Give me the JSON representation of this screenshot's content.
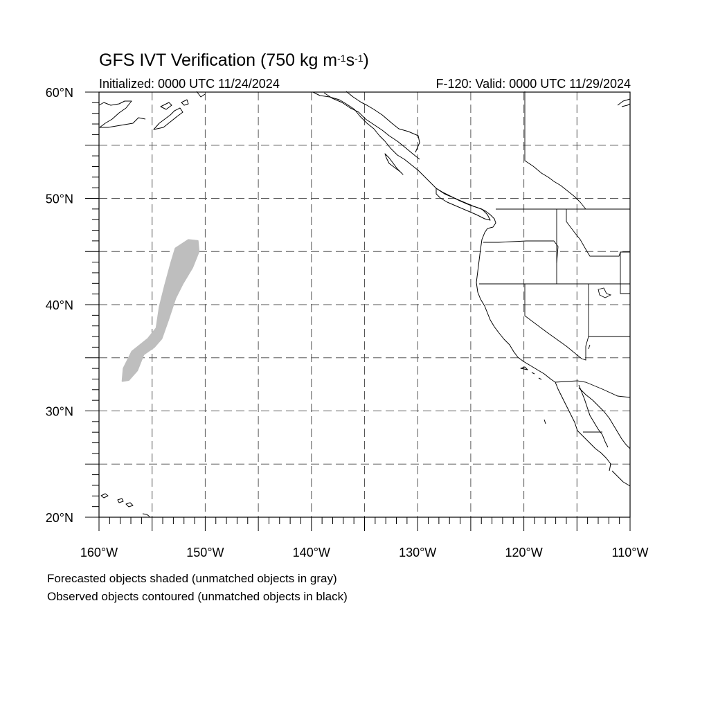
{
  "header": {
    "title_main": "GFS IVT Verification (750 kg m",
    "title_exp1": "-1",
    "title_mid": "s",
    "title_exp2": "-1",
    "title_end": ")",
    "initialized": "Initialized: 0000 UTC 11/24/2024",
    "valid": "F-120: Valid: 0000 UTC 11/29/2024"
  },
  "map": {
    "projection": "cylindrical-equidistant",
    "lon_range": [
      -160,
      -110
    ],
    "lat_range": [
      20,
      60
    ],
    "gridlines": "dashed",
    "lon_labels": [
      "160°W",
      "150°W",
      "140°W",
      "130°W",
      "120°W",
      "110°W"
    ],
    "lat_labels": [
      "60°N",
      "50°N",
      "40°N",
      "30°N",
      "20°N"
    ],
    "forecast_object_color": "#bebebe",
    "forecast_object": {
      "status": "unmatched",
      "outline_lonlat": [
        [
          -152.8,
          45.3
        ],
        [
          -151.6,
          46.1
        ],
        [
          -150.7,
          46.0
        ],
        [
          -150.6,
          45.0
        ],
        [
          -151.2,
          43.5
        ],
        [
          -152.1,
          42.0
        ],
        [
          -152.8,
          40.6
        ],
        [
          -153.5,
          38.5
        ],
        [
          -154.1,
          36.8
        ],
        [
          -154.8,
          36.0
        ],
        [
          -155.8,
          35.3
        ],
        [
          -156.4,
          33.8
        ],
        [
          -157.2,
          32.9
        ],
        [
          -157.8,
          32.8
        ],
        [
          -157.7,
          34.0
        ],
        [
          -156.9,
          35.6
        ],
        [
          -155.4,
          36.8
        ],
        [
          -154.6,
          37.8
        ],
        [
          -154.3,
          39.8
        ],
        [
          -153.8,
          41.8
        ],
        [
          -153.2,
          44.0
        ]
      ]
    }
  },
  "legend": {
    "line1": "Forecasted objects shaded (unmatched objects in gray)",
    "line2": "Observed objects contoured (unmatched objects in black)"
  }
}
